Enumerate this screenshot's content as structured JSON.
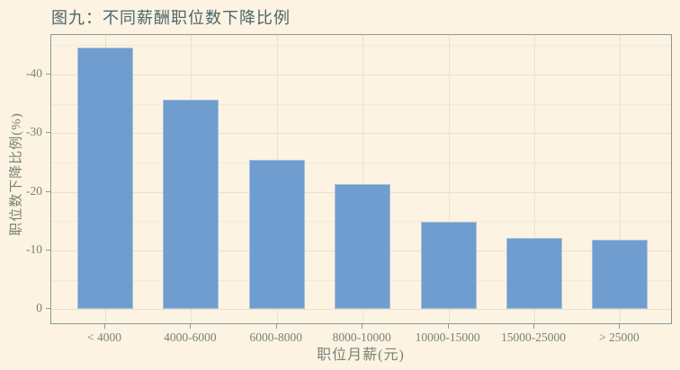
{
  "chart_data": {
    "type": "bar",
    "title": "图九：不同薪酬职位数下降比例",
    "xlabel": "职位月薪(元)",
    "ylabel": "职位数下降比例(%)",
    "categories": [
      "< 4000",
      "4000-6000",
      "6000-8000",
      "8000-10000",
      "10000-15000",
      "15000-25000",
      "> 25000"
    ],
    "values": [
      -44.5,
      -35.7,
      -25.5,
      -21.3,
      -14.9,
      -12.2,
      -11.8
    ],
    "ylim": [
      0,
      -46.7
    ],
    "y_axis_note": "negative values increase upward (axis reversed), bars grow up from 0 at bottom",
    "yticks": [
      0,
      -10,
      -20,
      -30,
      -40
    ],
    "yticks_minor": [
      -5,
      -15,
      -25,
      -35,
      -45
    ],
    "grid": "horizontal major+minor; vertical major at category centers",
    "legend": "none",
    "colors": {
      "background": "#FCF3E2",
      "bar": "#6F9DCF",
      "bar_edge": "#A9BFD8",
      "grid_major": "#EBE1C9",
      "grid_minor": "#F2EAD8",
      "panel_border": "#8B9899",
      "tick_mark": "#8B9899",
      "title_text": "#4C666C",
      "axis_text": "#7B8178"
    }
  }
}
